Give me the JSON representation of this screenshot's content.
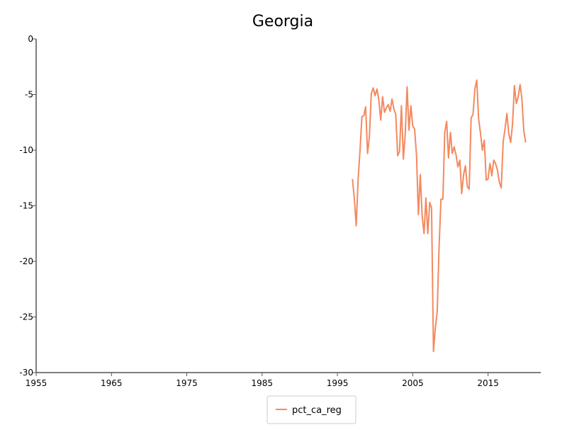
{
  "chart_data": {
    "type": "line",
    "title": "Georgia",
    "xlabel": "",
    "ylabel": "",
    "xlim": [
      1955,
      2022
    ],
    "ylim": [
      -30,
      0
    ],
    "x_ticks": [
      1955,
      1965,
      1975,
      1985,
      1995,
      2005,
      2015
    ],
    "y_ticks": [
      0,
      -5,
      -10,
      -15,
      -20,
      -25,
      -30
    ],
    "grid": false,
    "legend_position": "bottom-center",
    "series": [
      {
        "name": "pct_ca_reg",
        "color": "#f4895f",
        "x": [
          1997.0,
          1997.25,
          1997.5,
          1997.75,
          1998.0,
          1998.25,
          1998.5,
          1998.75,
          1999.0,
          1999.25,
          1999.5,
          1999.75,
          2000.0,
          2000.25,
          2000.5,
          2000.75,
          2001.0,
          2001.25,
          2001.5,
          2001.75,
          2002.0,
          2002.25,
          2002.5,
          2002.75,
          2003.0,
          2003.25,
          2003.5,
          2003.75,
          2004.0,
          2004.25,
          2004.5,
          2004.75,
          2005.0,
          2005.25,
          2005.5,
          2005.75,
          2006.0,
          2006.25,
          2006.5,
          2006.75,
          2007.0,
          2007.25,
          2007.5,
          2007.75,
          2008.0,
          2008.25,
          2008.5,
          2008.75,
          2009.0,
          2009.25,
          2009.5,
          2009.75,
          2010.0,
          2010.25,
          2010.5,
          2010.75,
          2011.0,
          2011.25,
          2011.5,
          2011.75,
          2012.0,
          2012.25,
          2012.5,
          2012.75,
          2013.0,
          2013.25,
          2013.5,
          2013.75,
          2014.0,
          2014.25,
          2014.5,
          2014.75,
          2015.0,
          2015.25,
          2015.5,
          2015.75,
          2016.0,
          2016.25,
          2016.5,
          2016.75,
          2017.0,
          2017.25,
          2017.5,
          2017.75,
          2018.0,
          2018.25,
          2018.5,
          2018.75,
          2019.0,
          2019.25,
          2019.5,
          2019.75,
          2020.0
        ],
        "y": [
          -12.6,
          -14.4,
          -16.8,
          -12.6,
          -10.0,
          -7.0,
          -6.9,
          -6.1,
          -10.3,
          -8.8,
          -4.9,
          -4.4,
          -5.1,
          -4.5,
          -5.5,
          -7.3,
          -5.2,
          -6.6,
          -6.2,
          -5.9,
          -6.5,
          -5.4,
          -6.3,
          -6.8,
          -10.5,
          -10.1,
          -6.0,
          -10.8,
          -8.6,
          -4.3,
          -8.2,
          -6.0,
          -7.8,
          -8.1,
          -10.5,
          -15.8,
          -12.2,
          -15.9,
          -17.5,
          -14.3,
          -17.5,
          -14.7,
          -15.2,
          -28.1,
          -26.0,
          -24.5,
          -18.7,
          -14.4,
          -14.4,
          -8.4,
          -7.4,
          -10.7,
          -8.4,
          -10.3,
          -9.7,
          -10.4,
          -11.5,
          -10.9,
          -13.9,
          -12.2,
          -11.4,
          -13.3,
          -13.5,
          -7.1,
          -6.8,
          -4.5,
          -3.7,
          -7.2,
          -8.5,
          -10.0,
          -9.1,
          -12.7,
          -12.6,
          -11.2,
          -12.3,
          -10.9,
          -11.2,
          -11.8,
          -12.9,
          -13.4,
          -9.3,
          -8.1,
          -6.7,
          -8.5,
          -9.3,
          -7.7,
          -4.2,
          -5.8,
          -5.2,
          -4.1,
          -5.4,
          -8.3,
          -9.3
        ]
      }
    ]
  }
}
